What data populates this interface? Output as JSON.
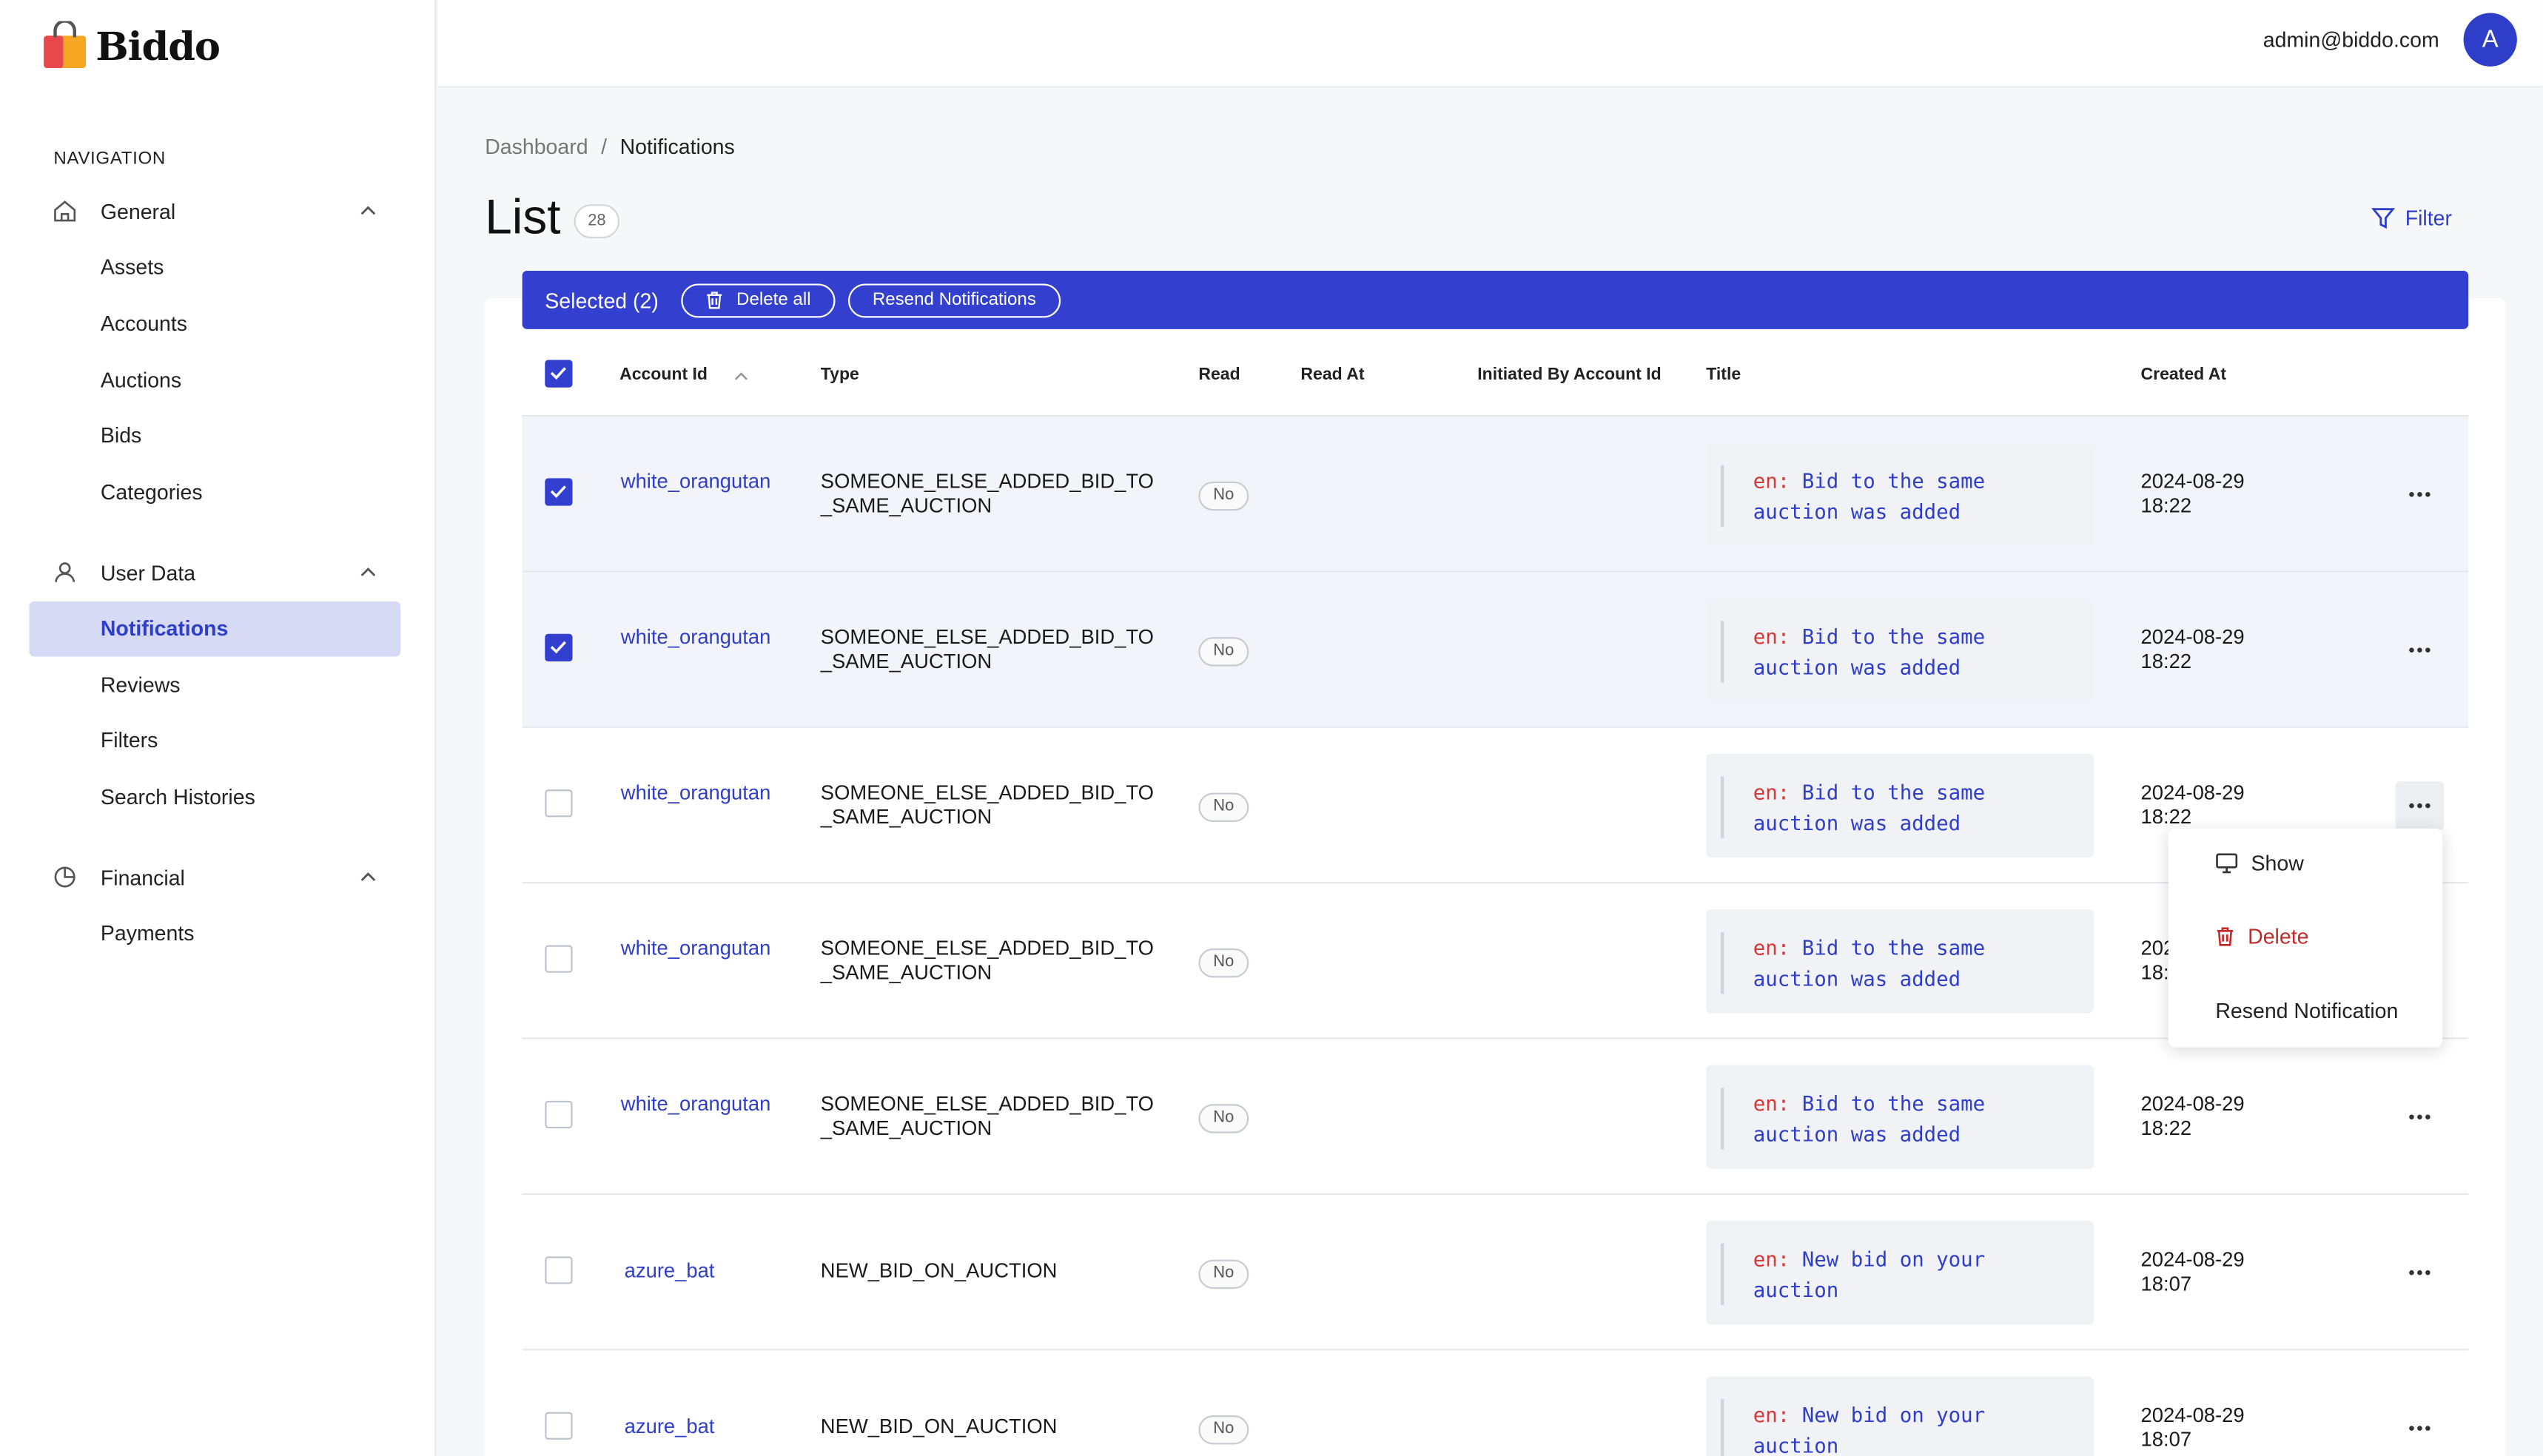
{
  "brand": {
    "name": "Biddo"
  },
  "header": {
    "user_email": "admin@biddo.com",
    "avatar_letter": "A"
  },
  "sidebar": {
    "heading": "NAVIGATION",
    "groups": [
      {
        "label": "General",
        "icon": "home-icon",
        "items": [
          "Assets",
          "Accounts",
          "Auctions",
          "Bids",
          "Categories"
        ]
      },
      {
        "label": "User Data",
        "icon": "user-icon",
        "items": [
          "Notifications",
          "Reviews",
          "Filters",
          "Search Histories"
        ]
      },
      {
        "label": "Financial",
        "icon": "pie-chart-icon",
        "items": [
          "Payments"
        ]
      }
    ],
    "active_item": "Notifications"
  },
  "breadcrumb": {
    "root": "Dashboard",
    "separator": "/",
    "current": "Notifications"
  },
  "page": {
    "title": "List",
    "count": "28",
    "filter_label": "Filter"
  },
  "selection_bar": {
    "text": "Selected (2)",
    "delete_all": "Delete all",
    "resend": "Resend Notifications"
  },
  "table": {
    "columns": [
      "Account Id",
      "Type",
      "Read",
      "Read At",
      "Initiated By Account Id",
      "Title",
      "Created At"
    ],
    "rows": [
      {
        "selected": true,
        "account": "white_orangutan",
        "type": "SOMEONE_ELSE_ADDED_BID_TO_SAME_AUCTION",
        "read": "No",
        "title_lang": "en:",
        "title": "Bid to the same auction was added",
        "created_date": "2024-08-29",
        "created_time": "18:22"
      },
      {
        "selected": true,
        "account": "white_orangutan",
        "type": "SOMEONE_ELSE_ADDED_BID_TO_SAME_AUCTION",
        "read": "No",
        "title_lang": "en:",
        "title": "Bid to the same auction was added",
        "created_date": "2024-08-29",
        "created_time": "18:22"
      },
      {
        "selected": false,
        "account": "white_orangutan",
        "type": "SOMEONE_ELSE_ADDED_BID_TO_SAME_AUCTION",
        "read": "No",
        "title_lang": "en:",
        "title": "Bid to the same auction was added",
        "created_date": "2024-08-29",
        "created_time": "18:22"
      },
      {
        "selected": false,
        "account": "white_orangutan",
        "type": "SOMEONE_ELSE_ADDED_BID_TO_SAME_AUCTION",
        "read": "No",
        "title_lang": "en:",
        "title": "Bid to the same auction was added",
        "created_date": "2024-08-29",
        "created_time": "18:22"
      },
      {
        "selected": false,
        "account": "white_orangutan",
        "type": "SOMEONE_ELSE_ADDED_BID_TO_SAME_AUCTION",
        "read": "No",
        "title_lang": "en:",
        "title": "Bid to the same auction was added",
        "created_date": "2024-08-29",
        "created_time": "18:22"
      },
      {
        "selected": false,
        "account": "azure_bat",
        "type": "NEW_BID_ON_AUCTION",
        "read": "No",
        "title_lang": "en:",
        "title": "New bid on your auction",
        "created_date": "2024-08-29",
        "created_time": "18:07"
      },
      {
        "selected": false,
        "account": "azure_bat",
        "type": "NEW_BID_ON_AUCTION",
        "read": "No",
        "title_lang": "en:",
        "title": "New bid on your auction",
        "created_date": "2024-08-29",
        "created_time": "18:07"
      }
    ]
  },
  "row_menu": {
    "show": "Show",
    "delete": "Delete",
    "resend": "Resend Notification"
  },
  "colors": {
    "accent": "#3340cf",
    "active_bg": "#d7daf5",
    "danger": "#c62828",
    "logo_orange": "#f5a623"
  }
}
